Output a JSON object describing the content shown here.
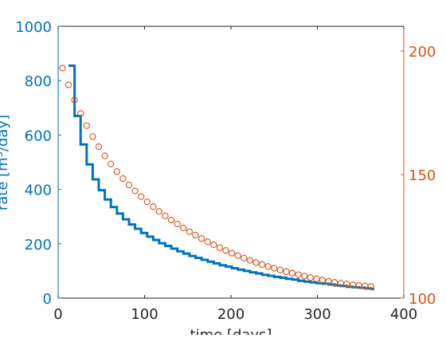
{
  "chart_data": {
    "type": "line",
    "title": "",
    "xlabel": "time [days]",
    "ylabel_left": "rate [m³/day]",
    "ylabel_right": "",
    "xlim": [
      0,
      400
    ],
    "ylim_left": [
      0,
      1000
    ],
    "ylim_right": [
      100,
      210
    ],
    "xticks": [
      0,
      100,
      200,
      300,
      400
    ],
    "yticks_left": [
      0,
      200,
      400,
      600,
      800,
      1000
    ],
    "yticks_right": [
      100,
      150,
      200
    ],
    "grid": false,
    "legend": "none",
    "colors": {
      "left_axis": "#0072bd",
      "right_axis": "#d95319",
      "box": "#262626"
    },
    "series": [
      {
        "axis": "left",
        "style": "stairs",
        "x": [
          12,
          19,
          26,
          33,
          40,
          47,
          54,
          61,
          68,
          75,
          82,
          89,
          96,
          103,
          110,
          117,
          124,
          131,
          138,
          145,
          152,
          159,
          166,
          173,
          180,
          187,
          194,
          201,
          208,
          215,
          222,
          229,
          236,
          243,
          250,
          257,
          264,
          271,
          278,
          285,
          292,
          299,
          306,
          313,
          320,
          327,
          334,
          341,
          348,
          355,
          362,
          366
        ],
        "y": [
          855,
          670,
          565,
          492,
          437,
          397,
          363,
          335,
          311,
          290,
          271,
          255,
          240,
          226,
          214,
          202,
          192,
          182,
          172,
          164,
          155,
          148,
          141,
          134,
          128,
          121,
          116,
          110,
          105,
          100,
          95,
          91,
          86,
          82,
          78,
          75,
          71,
          68,
          64,
          61,
          58,
          55,
          53,
          50,
          47,
          45,
          42,
          40,
          38,
          36,
          34,
          34
        ]
      },
      {
        "axis": "right",
        "style": "markers",
        "x": [
          5,
          12,
          19,
          26,
          33,
          40,
          47,
          54,
          61,
          68,
          75,
          82,
          89,
          96,
          103,
          110,
          117,
          124,
          131,
          138,
          145,
          152,
          159,
          166,
          173,
          180,
          187,
          194,
          201,
          208,
          215,
          222,
          229,
          236,
          243,
          250,
          257,
          264,
          271,
          278,
          285,
          292,
          299,
          306,
          313,
          320,
          327,
          334,
          341,
          348,
          355,
          362
        ],
        "y": [
          193.1,
          186.3,
          180.2,
          174.7,
          169.8,
          165.4,
          161.3,
          157.6,
          154.3,
          151.2,
          148.4,
          145.8,
          143.4,
          141.1,
          139.0,
          137.0,
          135.1,
          133.3,
          131.6,
          130.0,
          128.4,
          126.9,
          125.5,
          124.1,
          122.8,
          121.6,
          120.4,
          119.3,
          118.2,
          117.2,
          116.2,
          115.3,
          114.4,
          113.6,
          112.8,
          112.1,
          111.4,
          110.7,
          110.1,
          109.5,
          108.9,
          108.3,
          107.8,
          107.3,
          106.8,
          106.4,
          106.0,
          105.7,
          105.4,
          105.1,
          104.9,
          104.7
        ]
      }
    ]
  }
}
